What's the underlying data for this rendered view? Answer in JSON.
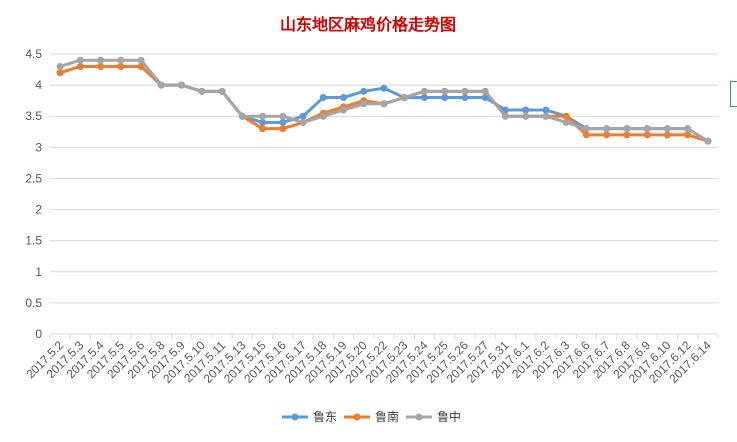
{
  "chart_data": {
    "type": "line",
    "title": "山东地区麻鸡价格走势图",
    "xlabel": "",
    "ylabel": "",
    "ylim": [
      0,
      4.5
    ],
    "yticks": [
      "0",
      "0.5",
      "1",
      "1.5",
      "2",
      "2.5",
      "3",
      "3.5",
      "4",
      "4.5"
    ],
    "grid": true,
    "legend_position": "bottom",
    "categories": [
      "2017.5.2",
      "2017.5.3",
      "2017.5.4",
      "2017.5.5",
      "2017.5.6",
      "2017.5.8",
      "2017.5.9",
      "2017.5.10",
      "2017.5.11",
      "2017.5.13",
      "2017.5.15",
      "2017.5.16",
      "2017.5.17",
      "2017.5.18",
      "2017.5.19",
      "2017.5.20",
      "2017.5.22",
      "2017.5.23",
      "2017.5.24",
      "2017.5.25",
      "2017.5.26",
      "2017.5.27",
      "2017.5.31",
      "2017.6.1",
      "2017.6.2",
      "2017.6.3",
      "2017.6.6",
      "2017.6.7",
      "2017.6.8",
      "2017.6.9",
      "2017.6.10",
      "2017.6.12",
      "2017.6.14"
    ],
    "series": [
      {
        "name": "鲁东",
        "color": "#5b9bd5",
        "values": [
          4.2,
          4.3,
          4.3,
          4.3,
          4.3,
          4.0,
          4.0,
          3.9,
          3.9,
          3.5,
          3.4,
          3.4,
          3.5,
          3.8,
          3.8,
          3.9,
          3.95,
          3.8,
          3.8,
          3.8,
          3.8,
          3.8,
          3.6,
          3.6,
          3.6,
          3.5,
          3.3,
          3.3,
          3.3,
          3.3,
          3.3,
          3.3,
          3.1
        ]
      },
      {
        "name": "鲁南",
        "color": "#ed7d31",
        "values": [
          4.2,
          4.3,
          4.3,
          4.3,
          4.3,
          4.0,
          4.0,
          3.9,
          3.9,
          3.5,
          3.3,
          3.3,
          3.4,
          3.55,
          3.65,
          3.75,
          3.7,
          3.8,
          3.9,
          3.9,
          3.9,
          3.9,
          3.5,
          3.5,
          3.5,
          3.5,
          3.2,
          3.2,
          3.2,
          3.2,
          3.2,
          3.2,
          3.1
        ]
      },
      {
        "name": "鲁中",
        "color": "#a5a5a5",
        "values": [
          4.3,
          4.4,
          4.4,
          4.4,
          4.4,
          4.0,
          4.0,
          3.9,
          3.9,
          3.5,
          3.5,
          3.5,
          3.4,
          3.5,
          3.6,
          3.7,
          3.7,
          3.8,
          3.9,
          3.9,
          3.9,
          3.9,
          3.5,
          3.5,
          3.5,
          3.4,
          3.3,
          3.3,
          3.3,
          3.3,
          3.3,
          3.3,
          3.1
        ]
      }
    ]
  }
}
